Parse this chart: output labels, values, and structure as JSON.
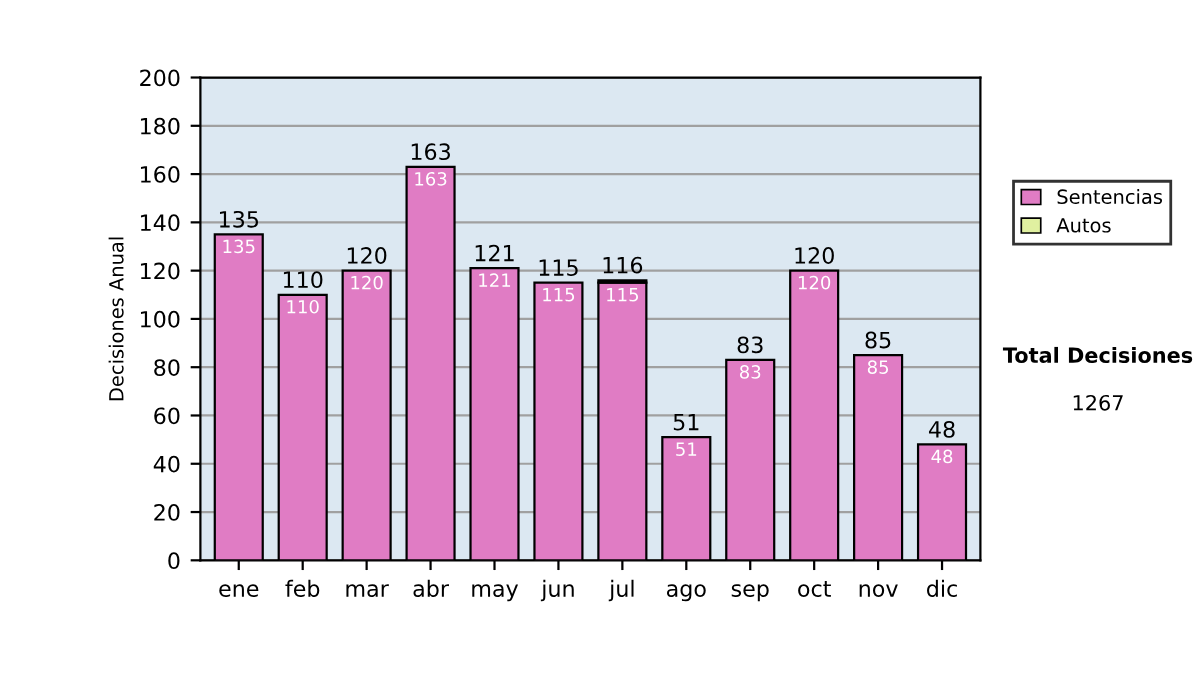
{
  "chart_data": {
    "type": "bar",
    "ylabel": "Decisiones Anual",
    "categories": [
      "ene",
      "feb",
      "mar",
      "abr",
      "may",
      "jun",
      "jul",
      "ago",
      "sep",
      "oct",
      "nov",
      "dic"
    ],
    "stacked": true,
    "series": [
      {
        "name": "Sentencias",
        "color": "#e07cc4",
        "values": [
          135,
          110,
          120,
          163,
          121,
          115,
          115,
          51,
          83,
          120,
          85,
          48
        ],
        "value_labels": [
          "135",
          "110",
          "120",
          "163",
          "121",
          "115",
          "115",
          "51",
          "83",
          "120",
          "85",
          "48"
        ]
      },
      {
        "name": "Autos",
        "color": "#e0f0a0",
        "values": [
          0,
          0,
          0,
          0,
          0,
          0,
          1,
          0,
          0,
          0,
          0,
          0
        ]
      }
    ],
    "totals": [
      "135",
      "110",
      "120",
      "163",
      "121",
      "115",
      "116",
      "51",
      "83",
      "120",
      "85",
      "48"
    ],
    "ylim": [
      0,
      200
    ],
    "yticks": [
      0,
      20,
      40,
      60,
      80,
      100,
      120,
      140,
      160,
      180,
      200
    ],
    "grid": "y",
    "legend": "right",
    "annotations": [
      "Total Decisiones",
      "1267"
    ]
  }
}
